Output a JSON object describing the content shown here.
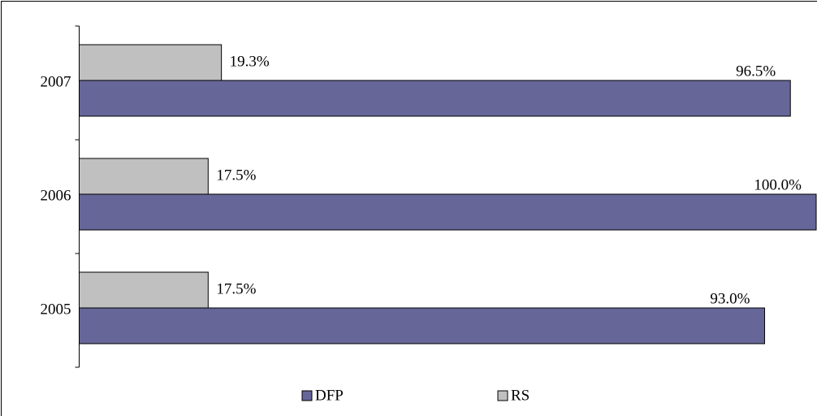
{
  "chart_data": {
    "type": "bar",
    "orientation": "horizontal",
    "categories": [
      "2005",
      "2006",
      "2007"
    ],
    "series": [
      {
        "name": "DFP",
        "color": "#666699",
        "values": [
          93.0,
          100.0,
          96.5
        ],
        "value_labels": [
          "93.0%",
          "100.0%",
          "96.5%"
        ]
      },
      {
        "name": "RS",
        "color": "#c0c0c0",
        "values": [
          17.5,
          17.5,
          19.3
        ],
        "value_labels": [
          "17.5%",
          "17.5%",
          "19.3%"
        ]
      }
    ],
    "xlim": [
      0,
      100
    ]
  }
}
